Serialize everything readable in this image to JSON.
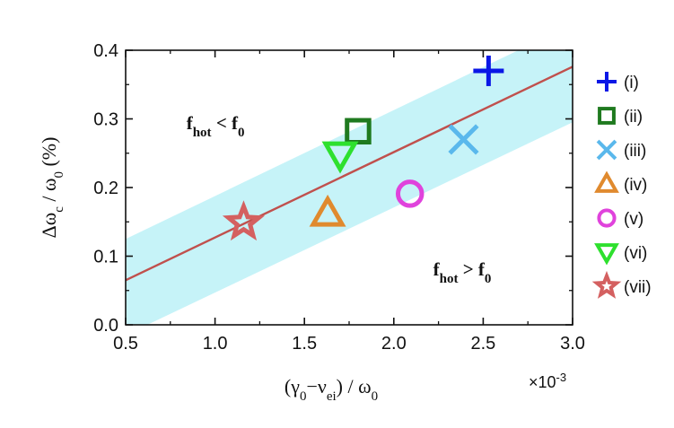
{
  "chart_data": {
    "type": "scatter",
    "xlabel": {
      "main": "(γ",
      "sub0": "0",
      "mid": "−ν",
      "subEi": "ei",
      "close": ") / ω",
      "sub1": "0"
    },
    "ylabel": {
      "main": "Δω",
      "subC": "c",
      "mid": " / ω",
      "sub0": "0",
      "unit": " (%)"
    },
    "x_multiplier": {
      "base": "×10",
      "exp": "-3"
    },
    "xlim": [
      0.5,
      3.0
    ],
    "ylim": [
      0.0,
      0.4
    ],
    "xticks": [
      "0.5",
      "1.0",
      "1.5",
      "2.0",
      "2.5",
      "3.0"
    ],
    "yticks": [
      "0.0",
      "0.1",
      "0.2",
      "0.3",
      "0.4"
    ],
    "fit_line": {
      "x": [
        0.5,
        3.0
      ],
      "y": [
        0.065,
        0.376
      ],
      "color": "#c0504d"
    },
    "band": {
      "upper": [
        0.125,
        0.438
      ],
      "lower": [
        -0.015,
        0.295
      ],
      "color": "#c6f3f8"
    },
    "annotations": [
      {
        "main": "f",
        "sub": "hot",
        "op": " < ",
        "main2": "f",
        "sub2": "0",
        "x": 0.84,
        "y": 0.285
      },
      {
        "main": "f",
        "sub": "hot",
        "op": " > ",
        "main2": "f",
        "sub2": "0",
        "x": 2.22,
        "y": 0.072
      }
    ],
    "series": [
      {
        "name": "(i)",
        "marker": "plus",
        "color": "#0a17e6",
        "x": 2.53,
        "y": 0.37
      },
      {
        "name": "(ii)",
        "marker": "square",
        "color": "#1f7a1f",
        "x": 1.8,
        "y": 0.282
      },
      {
        "name": "(iii)",
        "marker": "x",
        "color": "#5ab8ec",
        "x": 2.39,
        "y": 0.27
      },
      {
        "name": "(iv)",
        "marker": "triangle-up",
        "color": "#e08a2e",
        "x": 1.63,
        "y": 0.162
      },
      {
        "name": "(v)",
        "marker": "circle",
        "color": "#e043dc",
        "x": 2.09,
        "y": 0.191
      },
      {
        "name": "(vi)",
        "marker": "triangle-down",
        "color": "#2ee02e",
        "x": 1.7,
        "y": 0.248
      },
      {
        "name": "(vii)",
        "marker": "star",
        "color": "#d46060",
        "x": 1.16,
        "y": 0.149
      }
    ],
    "legend": {
      "placement": "right"
    }
  }
}
